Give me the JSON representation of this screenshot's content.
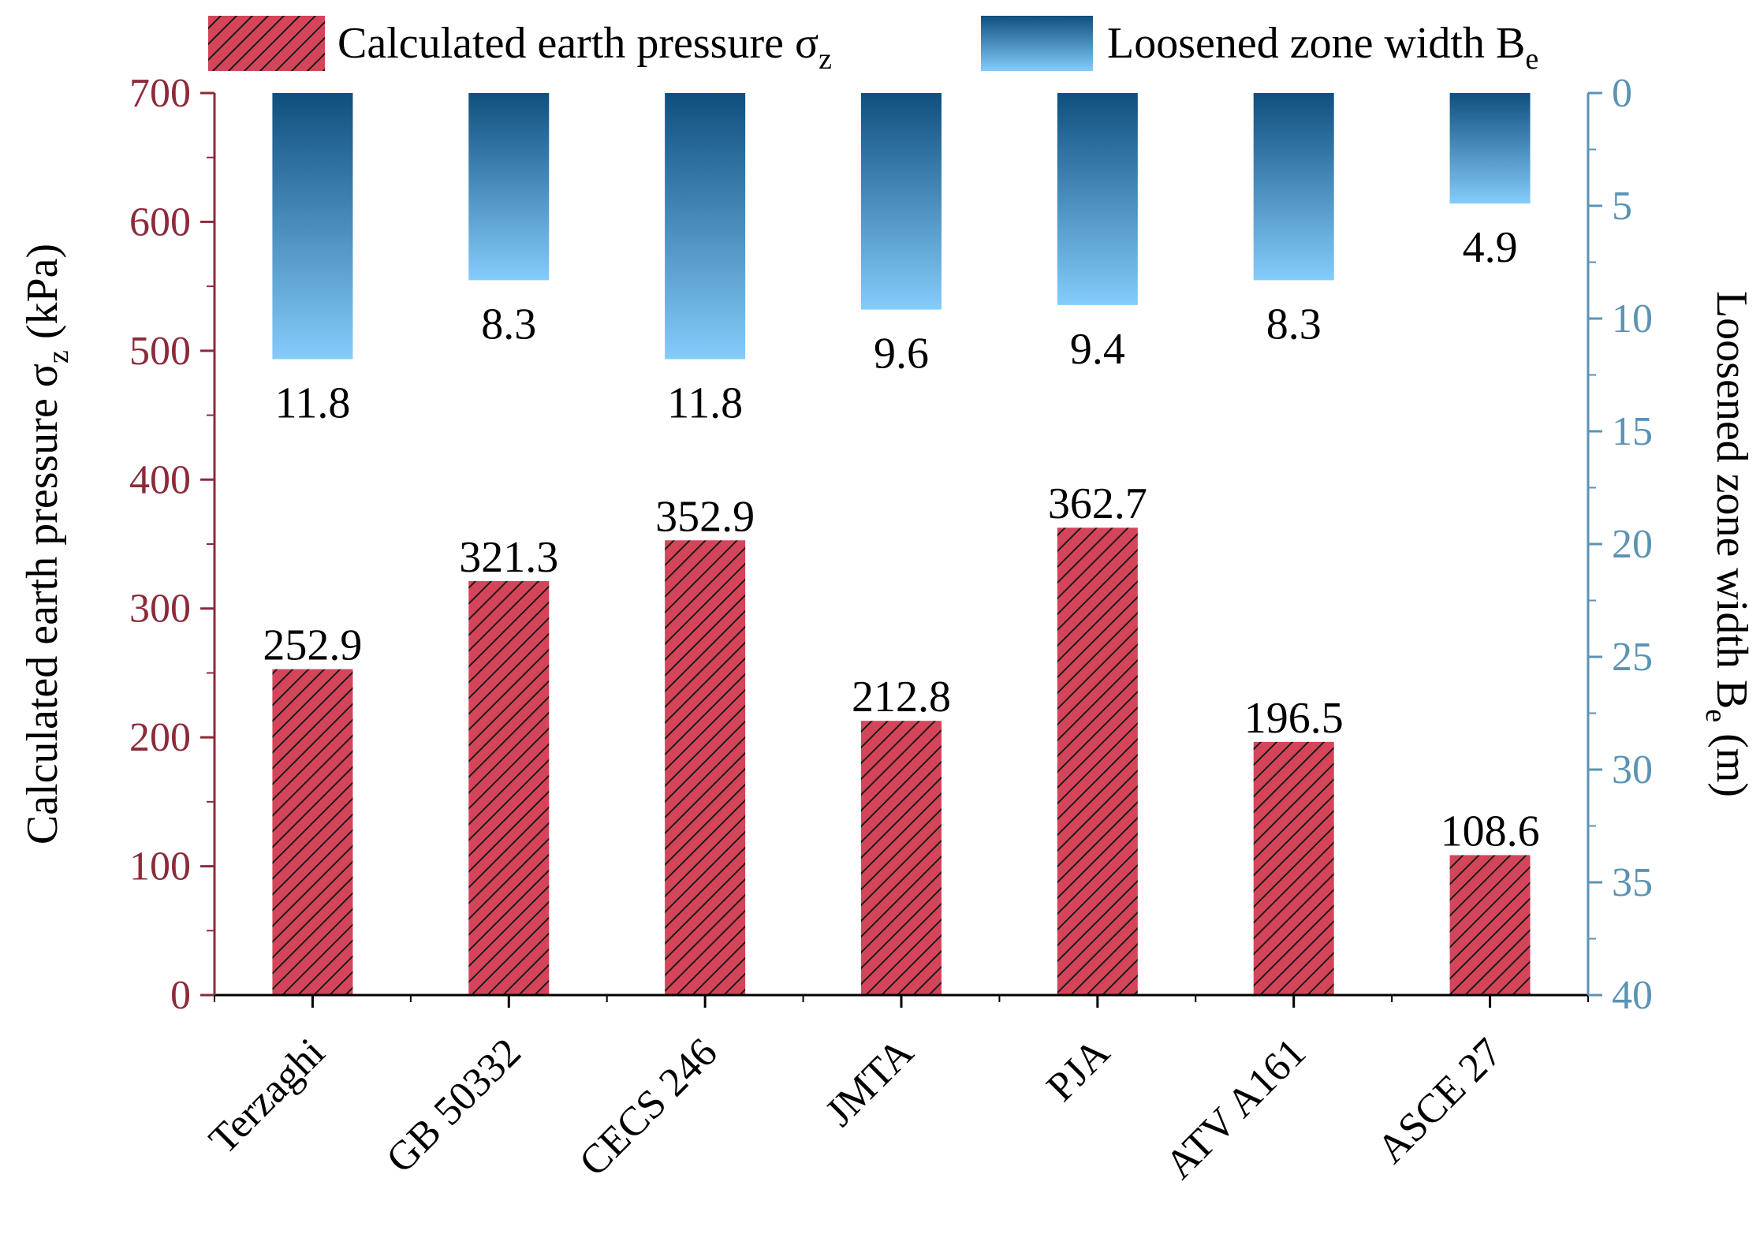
{
  "chart_data": {
    "type": "bar",
    "categories": [
      "Terzaghi",
      "GB 50332",
      "CECS 246",
      "JMTA",
      "PJA",
      "ATV A161",
      "ASCE 27"
    ],
    "series": [
      {
        "name": "Calculated earth pressure σz",
        "axis": "left",
        "values": [
          252.9,
          321.3,
          352.9,
          212.8,
          362.7,
          196.5,
          108.6
        ],
        "labels": [
          "252.9",
          "321.3",
          "352.9",
          "212.8",
          "362.7",
          "196.5",
          "108.6"
        ],
        "color": "#d4455a",
        "pattern": "diagonal-hatch"
      },
      {
        "name": "Loosened zone width Be",
        "axis": "right",
        "values": [
          11.8,
          8.3,
          11.8,
          9.6,
          9.4,
          8.3,
          4.9
        ],
        "labels": [
          "11.8",
          "8.3",
          "11.8",
          "9.6",
          "9.4",
          "8.3",
          "4.9"
        ],
        "color_top": "#0f4f7e",
        "color_bottom": "#84ccfb",
        "direction": "downward"
      }
    ],
    "y_left": {
      "label_main": "Calculated earth pressure σ",
      "label_sub": "z",
      "label_tail": " (kPa)",
      "range": [
        0,
        700
      ],
      "ticks": [
        0,
        100,
        200,
        300,
        400,
        500,
        600,
        700
      ],
      "tick_labels": [
        "0",
        "100",
        "200",
        "300",
        "400",
        "500",
        "600",
        "700"
      ],
      "color": "#8b2b3a"
    },
    "y_right": {
      "label_main": "Loosened zone width B",
      "label_sub": "e",
      "label_tail": " (m)",
      "range": [
        0,
        40
      ],
      "inverted": true,
      "ticks": [
        0,
        5,
        10,
        15,
        20,
        25,
        30,
        35,
        40
      ],
      "tick_labels": [
        "0",
        "5",
        "10",
        "15",
        "20",
        "25",
        "30",
        "35",
        "40"
      ],
      "color": "#5b93b3"
    },
    "legend": {
      "position": "top",
      "items": [
        {
          "main": "Calculated earth pressure σ",
          "sub": "z"
        },
        {
          "main": "Loosened zone width B",
          "sub": "e"
        }
      ]
    }
  }
}
